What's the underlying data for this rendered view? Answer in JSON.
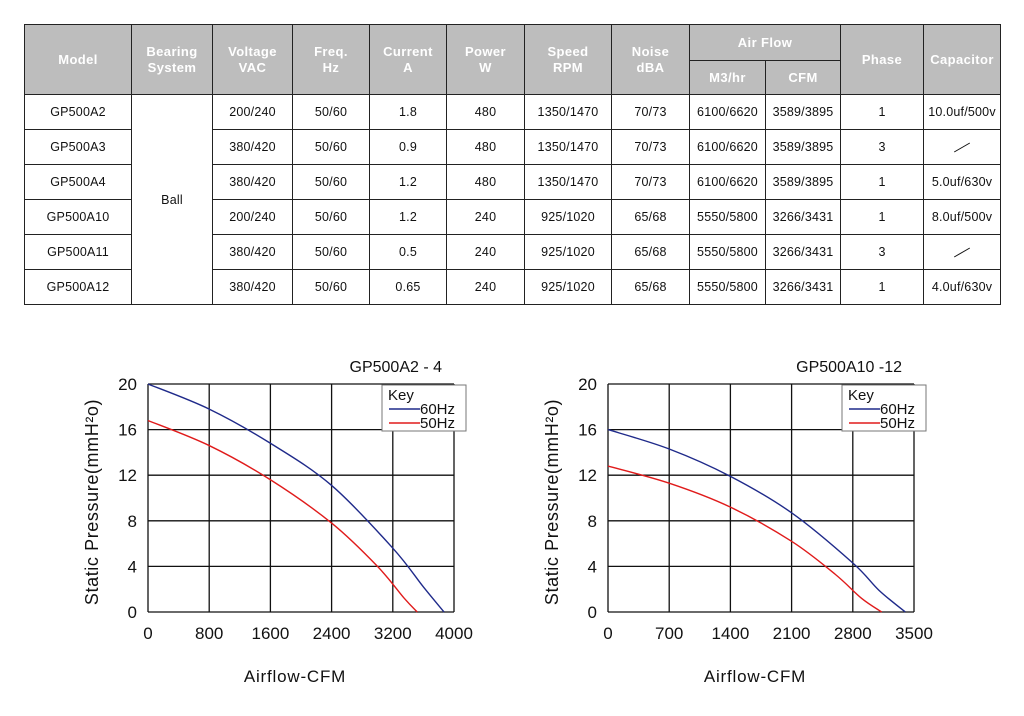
{
  "table": {
    "headers": {
      "model": "Model",
      "bearing": [
        "Bearing",
        "System"
      ],
      "voltage": [
        "Voltage",
        "VAC"
      ],
      "freq": [
        "Freq.",
        "Hz"
      ],
      "current": [
        "Current",
        "A"
      ],
      "power": [
        "Power",
        "W"
      ],
      "speed": [
        "Speed",
        "RPM"
      ],
      "noise": [
        "Noise",
        "dBA"
      ],
      "airflow": "Air Flow",
      "m3hr": "M3/hr",
      "cfm": "CFM",
      "phase": "Phase",
      "capacitor": "Capacitor"
    },
    "bearing_value": "Ball",
    "rows": [
      {
        "model": "GP500A2",
        "voltage": "200/240",
        "freq": "50/60",
        "current": "1.8",
        "power": "480",
        "speed": "1350/1470",
        "noise": "70/73",
        "m3hr": "6100/6620",
        "cfm": "3589/3895",
        "phase": "1",
        "capacitor": "10.0uf/500v"
      },
      {
        "model": "GP500A3",
        "voltage": "380/420",
        "freq": "50/60",
        "current": "0.9",
        "power": "480",
        "speed": "1350/1470",
        "noise": "70/73",
        "m3hr": "6100/6620",
        "cfm": "3589/3895",
        "phase": "3",
        "capacitor": ""
      },
      {
        "model": "GP500A4",
        "voltage": "380/420",
        "freq": "50/60",
        "current": "1.2",
        "power": "480",
        "speed": "1350/1470",
        "noise": "70/73",
        "m3hr": "6100/6620",
        "cfm": "3589/3895",
        "phase": "1",
        "capacitor": "5.0uf/630v"
      },
      {
        "model": "GP500A10",
        "voltage": "200/240",
        "freq": "50/60",
        "current": "1.2",
        "power": "240",
        "speed": "925/1020",
        "noise": "65/68",
        "m3hr": "5550/5800",
        "cfm": "3266/3431",
        "phase": "1",
        "capacitor": "8.0uf/500v"
      },
      {
        "model": "GP500A11",
        "voltage": "380/420",
        "freq": "50/60",
        "current": "0.5",
        "power": "240",
        "speed": "925/1020",
        "noise": "65/68",
        "m3hr": "5550/5800",
        "cfm": "3266/3431",
        "phase": "3",
        "capacitor": ""
      },
      {
        "model": "GP500A12",
        "voltage": "380/420",
        "freq": "50/60",
        "current": "0.65",
        "power": "240",
        "speed": "925/1020",
        "noise": "65/68",
        "m3hr": "5550/5800",
        "cfm": "3266/3431",
        "phase": "1",
        "capacitor": "4.0uf/630v"
      }
    ]
  },
  "chart_data": [
    {
      "type": "line",
      "title": "GP500A2 - 4",
      "xlabel": "Airflow-CFM",
      "ylabel": "Static Pressure(mmH²o)",
      "xlim": [
        0,
        4000
      ],
      "ylim": [
        0,
        20
      ],
      "x_ticks": [
        "0",
        "800",
        "1600",
        "2400",
        "3200",
        "4000"
      ],
      "y_ticks": [
        "0",
        "4",
        "8",
        "12",
        "16",
        "20"
      ],
      "grid": true,
      "legend": {
        "title": "Key",
        "position": "top-right"
      },
      "series": [
        {
          "name": "60Hz",
          "color": "#1f2a8a",
          "points": [
            [
              0,
              20
            ],
            [
              800,
              17.8
            ],
            [
              1600,
              14.8
            ],
            [
              2400,
              11.1
            ],
            [
              3200,
              5.6
            ],
            [
              3600,
              2.2
            ],
            [
              3870,
              0
            ]
          ]
        },
        {
          "name": "50Hz",
          "color": "#e01b1b",
          "points": [
            [
              0,
              16.8
            ],
            [
              800,
              14.6
            ],
            [
              1600,
              11.6
            ],
            [
              2400,
              7.8
            ],
            [
              3000,
              4.0
            ],
            [
              3350,
              1.2
            ],
            [
              3520,
              0
            ]
          ]
        }
      ]
    },
    {
      "type": "line",
      "title": "GP500A10 -12",
      "xlabel": "Airflow-CFM",
      "ylabel": "Static Pressure(mmH²o)",
      "xlim": [
        0,
        3500
      ],
      "ylim": [
        0,
        20
      ],
      "x_ticks": [
        "0",
        "700",
        "1400",
        "2100",
        "2800",
        "3500"
      ],
      "y_ticks": [
        "0",
        "4",
        "8",
        "12",
        "16",
        "20"
      ],
      "grid": true,
      "legend": {
        "title": "Key",
        "position": "top-right"
      },
      "series": [
        {
          "name": "60Hz",
          "color": "#1f2a8a",
          "points": [
            [
              0,
              16
            ],
            [
              700,
              14.3
            ],
            [
              1400,
              11.9
            ],
            [
              2100,
              8.7
            ],
            [
              2800,
              4.3
            ],
            [
              3100,
              1.9
            ],
            [
              3400,
              0
            ]
          ]
        },
        {
          "name": "50Hz",
          "color": "#e01b1b",
          "points": [
            [
              0,
              12.8
            ],
            [
              700,
              11.3
            ],
            [
              1400,
              9.2
            ],
            [
              2100,
              6.2
            ],
            [
              2600,
              3.3
            ],
            [
              2900,
              1.2
            ],
            [
              3130,
              0
            ]
          ]
        }
      ]
    }
  ]
}
